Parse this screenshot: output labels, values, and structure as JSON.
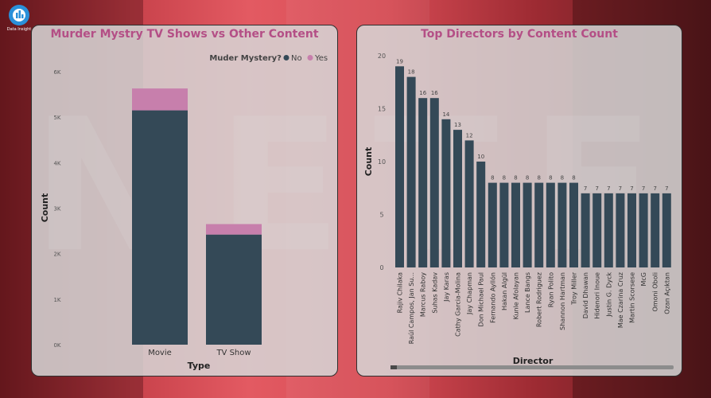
{
  "app": {
    "logo_text": "Data Insight",
    "colors": {
      "accent": "#b44f86",
      "bar_no": "#344957",
      "bar_yes": "#c77fac",
      "panel_bg": "#d6d6d6"
    }
  },
  "left_panel": {
    "title": "Murder Mystry TV Shows vs Other Content"
  },
  "right_panel": {
    "title": "Top Directors by Content Count"
  },
  "chart_data": [
    {
      "type": "bar",
      "stacked": true,
      "title": "Murder Mystry TV Shows vs Other Content",
      "xlabel": "Type",
      "ylabel": "Count",
      "categories": [
        "Movie",
        "TV Show"
      ],
      "series": [
        {
          "name": "No",
          "values": [
            5150,
            2420
          ],
          "color": "#344957"
        },
        {
          "name": "Yes",
          "values": [
            480,
            230
          ],
          "color": "#c77fac"
        }
      ],
      "legend_title": "Muder Mystery?",
      "legend_position": "top-right",
      "ylim": [
        0,
        6000
      ],
      "yticks": [
        0,
        1000,
        2000,
        3000,
        4000,
        5000,
        6000
      ],
      "ytick_labels": [
        "0K",
        "1K",
        "2K",
        "3K",
        "4K",
        "5K",
        "6K"
      ],
      "grid": false
    },
    {
      "type": "bar",
      "title": "Top Directors by Content Count",
      "xlabel": "Director",
      "ylabel": "Count",
      "categories": [
        "Rajiv Chilaka",
        "Raúl Campos, Jan Su...",
        "Marcus Raboy",
        "Suhas Kadav",
        "Jay Karas",
        "Cathy Garcia-Molina",
        "Jay Chapman",
        "Don Michael Paul",
        "Fernando Ayllón",
        "Hakan Algül",
        "Kunle Afolayan",
        "Lance Bangs",
        "Robert Rodriguez",
        "Ryan Polito",
        "Shannon Hartman",
        "Troy Miller",
        "David Dhawan",
        "Hidenori Inoue",
        "Justin G. Dyck",
        "Mae Czarina Cruz",
        "Martin Scorsese",
        "McG",
        "Omoni Oboli",
        "Ozan Açıktan"
      ],
      "values": [
        19,
        18,
        16,
        16,
        14,
        13,
        12,
        10,
        8,
        8,
        8,
        8,
        8,
        8,
        8,
        8,
        7,
        7,
        7,
        7,
        7,
        7,
        7,
        7
      ],
      "ylim": [
        0,
        20
      ],
      "yticks": [
        0,
        5,
        10,
        15,
        20
      ],
      "data_labels": true,
      "color": "#344957",
      "grid": false
    }
  ]
}
